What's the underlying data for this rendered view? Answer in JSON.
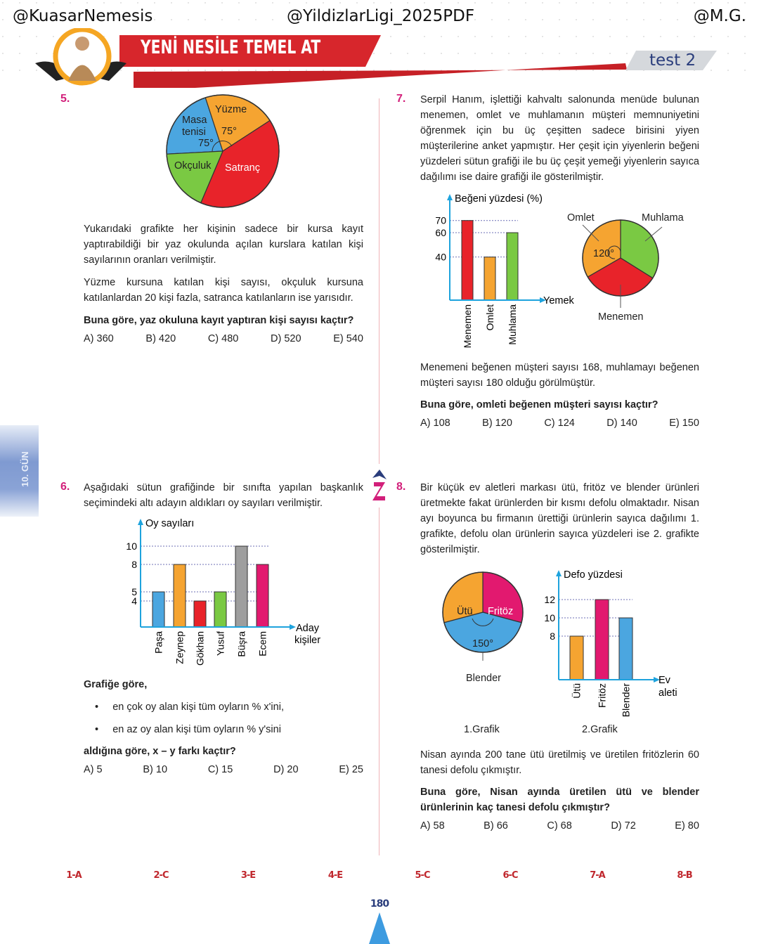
{
  "watermarks": [
    "@KuasarNemesis",
    "@YildizlarLigi_2025PDF",
    "@M.G."
  ],
  "header": {
    "banner": "YENİ NESİLE TEMEL AT",
    "test_label": "test 2"
  },
  "side_tab": "10. GÜN",
  "colors": {
    "accent": "#d21f7a",
    "red": "#e8232a",
    "orange": "#f5a431",
    "green": "#7ac943",
    "blue": "#4ba6e0",
    "gray": "#9e9e9e",
    "pink": "#e2196f",
    "axis": "#1ea3dd"
  },
  "q5": {
    "number": "5.",
    "text1": "Yukarıdaki grafikte her kişinin sadece bir kursa kayıt yaptırabildiği bir yaz okulunda açılan kurslara katılan kişi sayılarının oranları verilmiştir.",
    "text2": "Yüzme kursuna katılan kişi sayısı, okçuluk kursuna katılanlardan 20 kişi fazla, satranca katılanların ise yarısıdır.",
    "question": "Buna göre, yaz okuluna kayıt yaptıran kişi sayısı kaçtır?",
    "options": [
      "A) 360",
      "B) 420",
      "C) 480",
      "D) 520",
      "E) 540"
    ]
  },
  "q6": {
    "number": "6.",
    "text": "Aşağıdaki sütun grafiğinde bir sınıfta yapılan başkanlık seçimindeki altı adayın aldıkları oy sayıları verilmiştir.",
    "lead": "Grafiğe göre,",
    "bullets": [
      "en çok oy alan kişi tüm oyların % x'ini,",
      "en az oy alan kişi tüm oyların % y'sini"
    ],
    "question": "aldığına göre,  x – y  farkı kaçtır?",
    "options": [
      "A) 5",
      "B) 10",
      "C) 15",
      "D) 20",
      "E) 25"
    ]
  },
  "q7": {
    "number": "7.",
    "text1": "Serpil Hanım, işlettiği kahvaltı salonunda menüde bulunan menemen, omlet ve muhlamanın müşteri memnuniyetini öğrenmek için bu üç çeşitten sadece birisini yiyen müşterilerine anket yapmıştır. Her çeşit için yiyenlerin beğeni yüzdeleri sütun grafiği ile bu üç çeşit yemeği yiyenlerin sayıca dağılımı ise daire grafiği ile gösterilmiştir.",
    "text2": "Menemeni beğenen müşteri sayısı 168, muhlamayı beğenen müşteri sayısı 180 olduğu görülmüştür.",
    "question": "Buna göre, omleti beğenen müşteri sayısı kaçtır?",
    "options": [
      "A) 108",
      "B) 120",
      "C) 124",
      "D) 140",
      "E) 150"
    ]
  },
  "q8": {
    "number": "8.",
    "text1": "Bir küçük ev aletleri markası ütü, fritöz ve blender ürünleri üretmekte fakat ürünlerden bir kısmı defolu olmaktadır. Nisan ayı boyunca bu firmanın ürettiği ürünlerin sayıca dağılımı 1. grafikte, defolu olan ürünlerin sayıca yüzdeleri ise 2. grafikte gösterilmiştir.",
    "text2": "Nisan ayında 200 tane ütü üretilmiş ve üretilen fritözlerin 60 tanesi defolu çıkmıştır.",
    "question": "Buna göre, Nisan ayında üretilen ütü ve blender ürünlerinin kaç tanesi defolu çıkmıştır?",
    "options": [
      "A) 58",
      "B) 66",
      "C) 68",
      "D) 72",
      "E) 80"
    ],
    "caption1": "1.Grafik",
    "caption2": "2.Grafik"
  },
  "chart_data": [
    {
      "id": "q5-pie",
      "type": "pie",
      "slices": [
        {
          "label": "Masa tenisi",
          "angle_label": "75°",
          "degrees": 75,
          "color": "#4ba6e0"
        },
        {
          "label": "Yüzme",
          "angle_label": "75°",
          "degrees": 75,
          "color": "#f5a431"
        },
        {
          "label": "Satranç",
          "degrees": 146,
          "color": "#e8232a"
        },
        {
          "label": "Okçuluk",
          "degrees": 64,
          "color": "#7ac943"
        }
      ]
    },
    {
      "id": "q6-bar",
      "type": "bar",
      "ylabel": "Oy sayıları",
      "xlabel": "Aday kişiler",
      "yticks": [
        4,
        5,
        8,
        10
      ],
      "categories": [
        "Paşa",
        "Zeynep",
        "Gökhan",
        "Yusuf",
        "Büşra",
        "Ecem"
      ],
      "values": [
        5,
        8,
        4,
        5,
        10,
        8
      ],
      "colors": [
        "#4ba6e0",
        "#f5a431",
        "#e8232a",
        "#7ac943",
        "#9e9e9e",
        "#e2196f"
      ]
    },
    {
      "id": "q7-bar",
      "type": "bar",
      "ylabel": "Beğeni yüzdesi (%)",
      "xlabel": "Yemek",
      "yticks": [
        40,
        60,
        70
      ],
      "categories": [
        "Menemen",
        "Omlet",
        "Muhlama"
      ],
      "values": [
        70,
        40,
        60
      ],
      "colors": [
        "#e8232a",
        "#f5a431",
        "#7ac943"
      ]
    },
    {
      "id": "q7-pie",
      "type": "pie",
      "slices": [
        {
          "label": "Muhlama",
          "degrees": 122,
          "color": "#7ac943"
        },
        {
          "label": "Menemen",
          "degrees": 118,
          "color": "#e8232a"
        },
        {
          "label": "Omlet",
          "angle_label": "120°",
          "degrees": 120,
          "color": "#f5a431"
        }
      ]
    },
    {
      "id": "q8-pie",
      "type": "pie",
      "slices": [
        {
          "label": "Fritöz",
          "degrees": 105,
          "color": "#e2196f"
        },
        {
          "label": "Blender",
          "angle_label": "150°",
          "degrees": 150,
          "color": "#4ba6e0"
        },
        {
          "label": "Ütü",
          "degrees": 105,
          "color": "#f5a431"
        }
      ]
    },
    {
      "id": "q8-bar",
      "type": "bar",
      "ylabel": "Defo yüzdesi",
      "xlabel": "Ev aleti",
      "yticks": [
        8,
        10,
        12
      ],
      "categories": [
        "Ütü",
        "Fritöz",
        "Blender"
      ],
      "values": [
        8,
        12,
        10
      ],
      "colors": [
        "#f5a431",
        "#e2196f",
        "#4ba6e0"
      ]
    }
  ],
  "answer_key": [
    "1-A",
    "2-C",
    "3-E",
    "4-E",
    "5-C",
    "6-C",
    "7-A",
    "8-B"
  ],
  "page_number": "180"
}
